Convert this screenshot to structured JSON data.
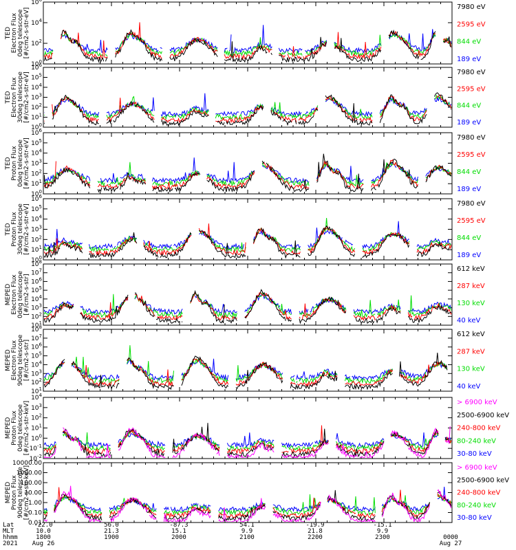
{
  "colors": {
    "blue": "#0000ff",
    "red": "#ff0000",
    "green": "#00dd00",
    "black": "#000000",
    "magenta": "#ff00ff"
  },
  "x_axis": {
    "row_labels": [
      "Lat",
      "MLT",
      "hhmm",
      "2021"
    ],
    "ticks": [
      {
        "lat": "-22.0",
        "mlt": "10.0",
        "hhmm": "1800",
        "date": "Aug 26"
      },
      {
        "lat": "56.0",
        "mlt": "21.3",
        "hhmm": "1900",
        "date": ""
      },
      {
        "lat": "-87.3",
        "mlt": "15.1",
        "hhmm": "2000",
        "date": ""
      },
      {
        "lat": "54.1",
        "mlt": "9.9",
        "hhmm": "2100",
        "date": ""
      },
      {
        "lat": "-19.9",
        "mlt": "21.8",
        "hhmm": "2200",
        "date": ""
      },
      {
        "lat": "-15.1",
        "mlt": "9.9",
        "hhmm": "2300",
        "date": ""
      },
      {
        "lat": "",
        "mlt": "",
        "hhmm": "0000",
        "date": "Aug 27"
      }
    ]
  },
  "chart_data": [
    {
      "type": "line",
      "ylabel": [
        "TED",
        "Electron Flux",
        "0deg telescope",
        "[#/cm2-s-str-eV]"
      ],
      "yscale": "log",
      "ylim_exp": [
        0,
        6
      ],
      "ytick_labels": [
        "10^0",
        "10^2",
        "10^4",
        "10^6"
      ],
      "series": [
        {
          "name": "7980 eV",
          "color": "black"
        },
        {
          "name": "2595 eV",
          "color": "red"
        },
        {
          "name": "844 eV",
          "color": "green"
        },
        {
          "name": "189 eV",
          "color": "blue"
        }
      ]
    },
    {
      "type": "line",
      "ylabel": [
        "TED",
        "Electron Flux",
        "30deg telescope",
        "[#/cm2-s-str-eV]"
      ],
      "yscale": "log",
      "ylim_exp": [
        0,
        6
      ],
      "ytick_labels": [
        "10^0",
        "10^1",
        "10^2",
        "10^3",
        "10^4",
        "10^5",
        "10^6"
      ],
      "series": [
        {
          "name": "7980 eV",
          "color": "black"
        },
        {
          "name": "2595 eV",
          "color": "red"
        },
        {
          "name": "844 eV",
          "color": "green"
        },
        {
          "name": "189 eV",
          "color": "blue"
        }
      ]
    },
    {
      "type": "line",
      "ylabel": [
        "TED",
        "Proton Flux",
        "0deg telescope",
        "[#/cm2-s-str-eV]"
      ],
      "yscale": "log",
      "ylim_exp": [
        0,
        6
      ],
      "ytick_labels": [
        "10^0",
        "10^1",
        "10^2",
        "10^3",
        "10^4",
        "10^5",
        "10^6"
      ],
      "series": [
        {
          "name": "7980 eV",
          "color": "black"
        },
        {
          "name": "2595 eV",
          "color": "red"
        },
        {
          "name": "844 eV",
          "color": "green"
        },
        {
          "name": "189 eV",
          "color": "blue"
        }
      ]
    },
    {
      "type": "line",
      "ylabel": [
        "TED",
        "Proton Flux",
        "30deg telescope",
        "[#/cm2-s-str-eV]"
      ],
      "yscale": "log",
      "ylim_exp": [
        0,
        6
      ],
      "ytick_labels": [
        "10^0",
        "10^1",
        "10^2",
        "10^3",
        "10^4",
        "10^5",
        "10^6"
      ],
      "series": [
        {
          "name": "7980 eV",
          "color": "black"
        },
        {
          "name": "2595 eV",
          "color": "red"
        },
        {
          "name": "844 eV",
          "color": "green"
        },
        {
          "name": "189 eV",
          "color": "blue"
        }
      ]
    },
    {
      "type": "line",
      "ylabel": [
        "MEPED",
        "Electron Flux",
        "0deg telescope",
        "[#/cm2-s-str]"
      ],
      "yscale": "log",
      "ylim_exp": [
        1,
        8
      ],
      "ytick_labels": [
        "10^1",
        "10^2",
        "10^3",
        "10^4",
        "10^5",
        "10^6",
        "10^7",
        "10^8"
      ],
      "series": [
        {
          "name": "612 keV",
          "color": "black"
        },
        {
          "name": "287 keV",
          "color": "red"
        },
        {
          "name": "130 keV",
          "color": "green"
        },
        {
          "name": "40 keV",
          "color": "blue"
        }
      ]
    },
    {
      "type": "line",
      "ylabel": [
        "MEPED",
        "Electron Flux",
        "90deg telescope",
        "[#/cm2-s-str]"
      ],
      "yscale": "log",
      "ylim_exp": [
        1,
        8
      ],
      "ytick_labels": [
        "10^1",
        "10^2",
        "10^3",
        "10^4",
        "10^5",
        "10^6",
        "10^7",
        "10^8"
      ],
      "series": [
        {
          "name": "612 keV",
          "color": "black"
        },
        {
          "name": "287 keV",
          "color": "red"
        },
        {
          "name": "130 keV",
          "color": "green"
        },
        {
          "name": "40 keV",
          "color": "blue"
        }
      ]
    },
    {
      "type": "line",
      "ylabel": [
        "MEPED",
        "Proton Flux",
        "0deg telescope",
        "[#/cm2-s-str-keV]"
      ],
      "yscale": "log",
      "ylim_exp": [
        -2,
        4
      ],
      "ytick_labels": [
        "10^-2",
        "10^-1",
        "10^0",
        "10^1",
        "10^2",
        "10^3",
        "10^4"
      ],
      "series": [
        {
          "name": "> 6900 keV",
          "color": "magenta"
        },
        {
          "name": "2500-6900 keV",
          "color": "black"
        },
        {
          "name": "240-800 keV",
          "color": "red"
        },
        {
          "name": "80-240 keV",
          "color": "green"
        },
        {
          "name": "30-80 keV",
          "color": "blue"
        }
      ]
    },
    {
      "type": "line",
      "ylabel": [
        "MEPED",
        "Proton Flux",
        "90deg telescope",
        "[#/cm2-s-str-keV]"
      ],
      "yscale": "log",
      "ylim_exp": [
        -2,
        4
      ],
      "ytick_labels": [
        "0.01",
        "0.10",
        "1.00",
        "10.00",
        "100.00",
        "1000.00",
        "10000.00"
      ],
      "series": [
        {
          "name": "> 6900 keV",
          "color": "magenta"
        },
        {
          "name": "2500-6900 keV",
          "color": "black"
        },
        {
          "name": "240-800 keV",
          "color": "red"
        },
        {
          "name": "80-240 keV",
          "color": "green"
        },
        {
          "name": "30-80 keV",
          "color": "blue"
        }
      ]
    }
  ]
}
